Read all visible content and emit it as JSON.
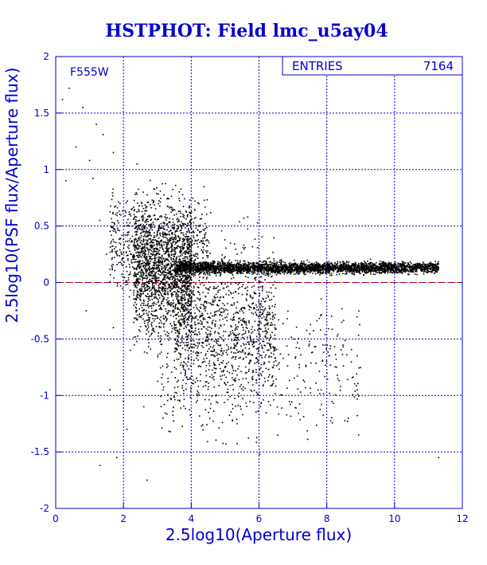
{
  "chart_data": {
    "type": "scatter",
    "title": "HSTPHOT: Field lmc_u5ay04",
    "xlabel": "2.5log10(Aperture flux)",
    "ylabel": "2.5log10(PSF flux/Aperture flux)",
    "xlim": [
      0,
      12
    ],
    "ylim": [
      -2,
      2
    ],
    "x_ticks": [
      "0",
      "2",
      "4",
      "6",
      "8",
      "10",
      "12"
    ],
    "y_ticks": [
      "-2",
      "-1.5",
      "-1",
      "-0.5",
      "0",
      "0.5",
      "1",
      "1.5",
      "2"
    ],
    "grid": true,
    "reference_line": {
      "y": 0,
      "color": "#cc0000",
      "style": "dashed"
    },
    "annotation": "F555W",
    "stats_box": {
      "label": "ENTRIES",
      "value": "7164"
    },
    "series": [
      {
        "marker_color": "#000000",
        "points": [
          [
            0.2,
            1.62
          ],
          [
            0.3,
            0.9
          ],
          [
            0.4,
            1.72
          ],
          [
            0.6,
            1.2
          ],
          [
            0.8,
            1.55
          ],
          [
            1.0,
            1.08
          ],
          [
            1.1,
            0.92
          ],
          [
            1.2,
            1.4
          ],
          [
            1.3,
            0.55
          ],
          [
            1.4,
            1.31
          ],
          [
            1.5,
            0.25
          ],
          [
            1.6,
            -0.95
          ],
          [
            1.7,
            1.15
          ],
          [
            1.8,
            -1.55
          ],
          [
            1.9,
            0.7
          ],
          [
            2.1,
            -1.3
          ],
          [
            2.2,
            -0.6
          ],
          [
            2.4,
            1.05
          ],
          [
            2.6,
            -1.1
          ],
          [
            2.7,
            -1.75
          ],
          [
            0.9,
            -0.25
          ],
          [
            1.3,
            -1.62
          ],
          [
            1.7,
            -0.4
          ],
          [
            2.0,
            -1.05
          ],
          [
            11.3,
            -1.55
          ]
        ],
        "dense_regions": [
          {
            "x_range": [
              2.3,
              4.0
            ],
            "y_center": 0.1,
            "y_spread": 0.55,
            "count": 1600
          },
          {
            "x_range": [
              3.5,
              6.5
            ],
            "y_center": -0.35,
            "y_spread": 0.65,
            "count": 1100
          },
          {
            "x_range": [
              3.5,
              11.3
            ],
            "y_center": 0.13,
            "y_spread": 0.05,
            "count": 3200
          },
          {
            "x_range": [
              1.6,
              4.5
            ],
            "y_center": 0.35,
            "y_spread": 0.45,
            "count": 700
          },
          {
            "x_range": [
              3.0,
              9.0
            ],
            "y_center": -0.8,
            "y_spread": 0.55,
            "count": 450
          }
        ]
      }
    ]
  }
}
